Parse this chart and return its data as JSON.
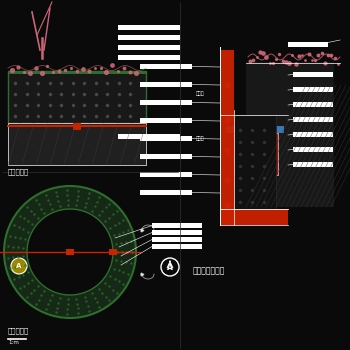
{
  "bg_color": "#0a0a0a",
  "line_color": "#ffffff",
  "red_color": "#cc2200",
  "green_color": "#2d6e2d",
  "pink_color": "#cc6677",
  "cyan_color": "#4488cc",
  "left_top_label": "花槽立面图",
  "left_bot_label": "花槽平面图",
  "right_label": "圆形花槽大样图",
  "scale_label": "1:m"
}
